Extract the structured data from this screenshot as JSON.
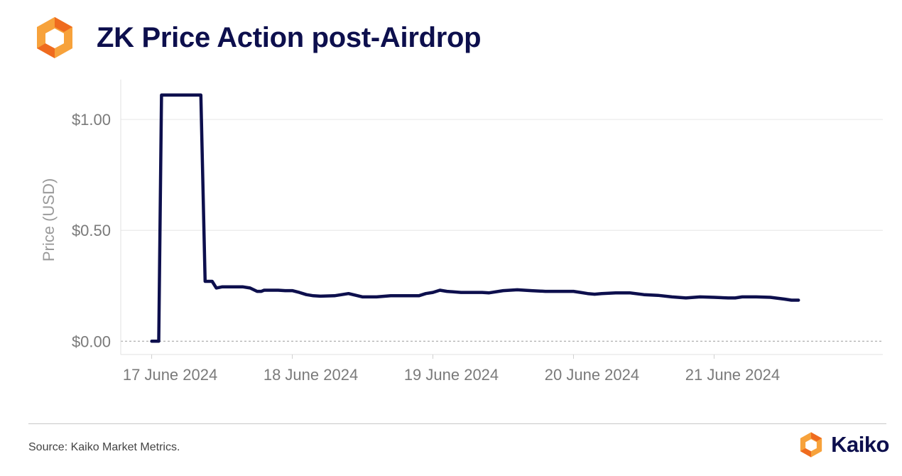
{
  "header": {
    "title": "ZK Price Action post-Airdrop"
  },
  "footer": {
    "source": "Source: Kaiko Market Metrics.",
    "brand": "Kaiko"
  },
  "colors": {
    "line": "#0d0f4d",
    "logo_light": "#f7a23b",
    "logo_dark": "#ef6b1f",
    "grid": "#e6e6e6"
  },
  "chart_data": {
    "type": "line",
    "title": "ZK Price Action post-Airdrop",
    "xlabel": "",
    "ylabel": "Price (USD)",
    "ylim": [
      -0.06,
      1.18
    ],
    "xlim": [
      -0.22,
      5.2
    ],
    "grid": true,
    "zero_line": "dashed",
    "y_ticks": [
      {
        "value": 0.0,
        "label": "$0.00"
      },
      {
        "value": 0.5,
        "label": "$0.50"
      },
      {
        "value": 1.0,
        "label": "$1.00"
      }
    ],
    "x_ticks": [
      {
        "value": 0,
        "label": "17 June 2024"
      },
      {
        "value": 1,
        "label": "18 June 2024"
      },
      {
        "value": 2,
        "label": "19 June 2024"
      },
      {
        "value": 3,
        "label": "20 June 2024"
      },
      {
        "value": 4,
        "label": "21 June 2024"
      }
    ],
    "x_unit": "days since 17 June 2024",
    "series": [
      {
        "x": [
          0.0,
          0.05,
          0.07,
          0.1,
          0.15,
          0.2,
          0.25,
          0.3,
          0.35,
          0.38,
          0.4,
          0.43,
          0.46,
          0.5,
          0.55,
          0.6,
          0.65,
          0.7,
          0.75,
          0.78,
          0.8,
          0.85,
          0.9,
          0.95,
          1.0,
          1.05,
          1.1,
          1.15,
          1.2,
          1.3,
          1.4,
          1.5,
          1.55,
          1.6,
          1.7,
          1.8,
          1.9,
          1.95,
          2.0,
          2.05,
          2.1,
          2.2,
          2.3,
          2.35,
          2.4,
          2.5,
          2.6,
          2.7,
          2.8,
          2.9,
          3.0,
          3.05,
          3.1,
          3.15,
          3.2,
          3.3,
          3.4,
          3.5,
          3.6,
          3.7,
          3.8,
          3.9,
          4.0,
          4.1,
          4.15,
          4.2,
          4.3,
          4.4,
          4.5,
          4.55,
          4.6
        ],
        "y": [
          0.0,
          0.0,
          1.11,
          1.11,
          1.11,
          1.11,
          1.11,
          1.11,
          1.11,
          0.27,
          0.27,
          0.27,
          0.24,
          0.245,
          0.245,
          0.245,
          0.245,
          0.24,
          0.225,
          0.225,
          0.23,
          0.23,
          0.23,
          0.228,
          0.228,
          0.22,
          0.21,
          0.205,
          0.203,
          0.205,
          0.215,
          0.2,
          0.2,
          0.2,
          0.205,
          0.205,
          0.205,
          0.215,
          0.22,
          0.23,
          0.225,
          0.22,
          0.22,
          0.22,
          0.218,
          0.228,
          0.232,
          0.228,
          0.225,
          0.225,
          0.225,
          0.22,
          0.215,
          0.212,
          0.215,
          0.218,
          0.218,
          0.21,
          0.207,
          0.2,
          0.195,
          0.2,
          0.198,
          0.195,
          0.195,
          0.2,
          0.2,
          0.198,
          0.19,
          0.185,
          0.185
        ]
      }
    ]
  }
}
